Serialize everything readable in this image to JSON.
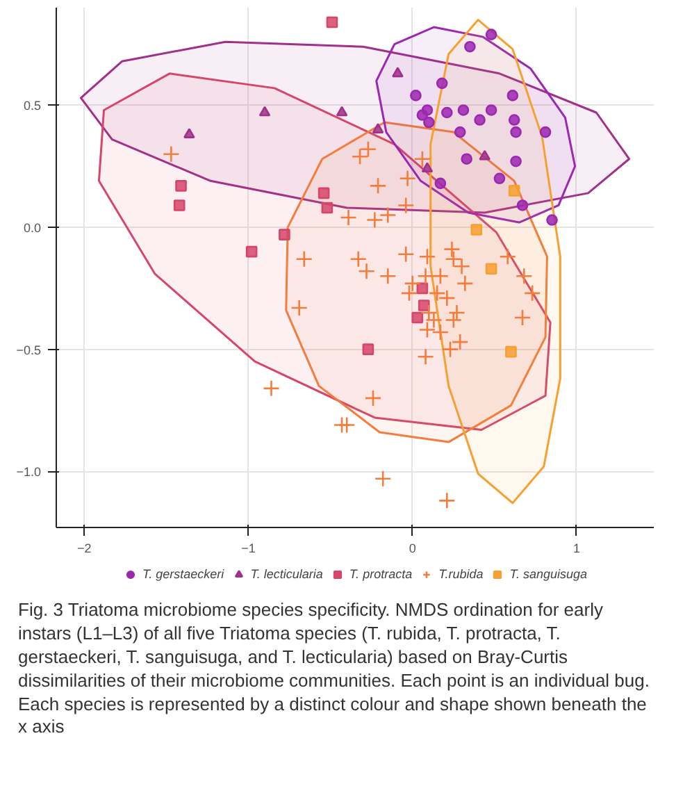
{
  "chart_data": {
    "type": "scatter",
    "xlim": [
      -2.17,
      1.47
    ],
    "ylim": [
      -1.23,
      0.9
    ],
    "xticks": [
      {
        "value": -2,
        "label": "−2"
      },
      {
        "value": -1,
        "label": "−1"
      },
      0,
      1
    ],
    "yticks": [
      {
        "value": -1,
        "label": "−1.0"
      },
      {
        "value": -0.5,
        "label": "−0.5"
      },
      {
        "value": 0,
        "label": "0.0"
      },
      0.5
    ],
    "grid": true,
    "legend": "bottom",
    "annotations": [
      "Fig. 3 Triatoma microbiome species specificity. NMDS ordination for early instars (L1–L3) of all five Triatoma species (T. rubida, T. protracta, T. gerstaeckeri, T. sanguisuga, and T. lecticularia) based on Bray-Curtis dissimilarities of their microbiome communities. Each point is an individual bug. Each species is represented by a distinct colour and shape shown beneath the x axis"
    ],
    "series": [
      {
        "type": "area",
        "color": "#a0308a",
        "x": [
          1.32,
          1.07,
          0.44,
          -0.4,
          -1.23,
          -1.83,
          -2.02,
          -1.77,
          -1.14,
          -0.3,
          0.53,
          1.12
        ],
        "values": [
          0.28,
          0.14,
          0.06,
          0.08,
          0.19,
          0.36,
          0.53,
          0.68,
          0.76,
          0.74,
          0.63,
          0.47
        ]
      },
      {
        "type": "area",
        "color": "#d6456a",
        "x": [
          0.81,
          0.42,
          -0.23,
          -0.96,
          -1.57,
          -1.91,
          -1.88,
          -1.48,
          -0.84,
          -0.11,
          0.51,
          0.84
        ],
        "values": [
          -0.69,
          -0.83,
          -0.78,
          -0.55,
          -0.19,
          0.19,
          0.48,
          0.63,
          0.57,
          0.34,
          -0.02,
          -0.39
        ]
      },
      {
        "type": "area",
        "color": "#f47c3c",
        "x": [
          0.22,
          -0.2,
          -0.57,
          -0.77,
          -0.76,
          -0.55,
          -0.17,
          0.25,
          0.62,
          0.82,
          0.81,
          0.6
        ],
        "values": [
          -0.88,
          -0.84,
          -0.65,
          -0.34,
          0.0,
          0.28,
          0.43,
          0.39,
          0.19,
          -0.12,
          -0.45,
          -0.73
        ]
      },
      {
        "type": "area",
        "color": "#9c27b0",
        "x": [
          0.89,
          0.65,
          0.34,
          0.05,
          -0.16,
          -0.22,
          -0.11,
          0.13,
          0.43,
          0.72,
          0.93,
          0.99
        ],
        "values": [
          0.09,
          0.02,
          0.06,
          0.19,
          0.39,
          0.6,
          0.75,
          0.82,
          0.78,
          0.65,
          0.45,
          0.25
        ]
      },
      {
        "type": "area",
        "color": "#f5a030",
        "x": [
          0.61,
          0.4,
          0.22,
          0.11,
          0.11,
          0.22,
          0.4,
          0.61,
          0.79,
          0.9,
          0.9,
          0.8
        ],
        "values": [
          -1.13,
          -1.01,
          -0.65,
          -0.16,
          0.34,
          0.71,
          0.85,
          0.73,
          0.37,
          -0.12,
          -0.62,
          -0.98
        ]
      },
      {
        "name": "T. gerstaeckeri",
        "color": "#9c27b0",
        "marker": "circle",
        "x": [
          0.48,
          0.35,
          0.18,
          0.02,
          0.06,
          0.09,
          0.1,
          0.21,
          0.31,
          0.41,
          0.48,
          0.61,
          0.62,
          0.63,
          0.81,
          0.29,
          0.33,
          0.63,
          0.53,
          0.17,
          0.67,
          0.85
        ],
        "values": [
          0.79,
          0.74,
          0.59,
          0.54,
          0.46,
          0.48,
          0.43,
          0.47,
          0.48,
          0.44,
          0.48,
          0.54,
          0.44,
          0.39,
          0.39,
          0.39,
          0.28,
          0.27,
          0.2,
          0.18,
          0.09,
          0.03
        ]
      },
      {
        "name": "T. lecticularia",
        "color": "#a0308a",
        "marker": "triangle",
        "x": [
          -1.36,
          -0.9,
          -0.43,
          -0.09,
          -0.21,
          0.44,
          0.09
        ],
        "values": [
          0.38,
          0.47,
          0.47,
          0.63,
          0.4,
          0.29,
          0.24
        ]
      },
      {
        "name": "T. protracta",
        "color": "#d6456a",
        "marker": "square",
        "x": [
          -0.49,
          -1.41,
          -1.42,
          -0.54,
          -0.52,
          -0.78,
          -0.98,
          0.06,
          0.07,
          0.03,
          -0.27
        ],
        "values": [
          0.84,
          0.17,
          0.09,
          0.14,
          0.08,
          -0.03,
          -0.1,
          -0.25,
          -0.32,
          -0.37,
          -0.5
        ]
      },
      {
        "name": "T.rubida",
        "color": "#f47c3c",
        "marker": "cross",
        "x": [
          -1.47,
          -0.66,
          -0.69,
          -0.86,
          -0.43,
          -0.27,
          -0.32,
          0.06,
          -0.03,
          -0.21,
          -0.04,
          -0.39,
          -0.23,
          -0.15,
          -0.33,
          -0.28,
          -0.15,
          -0.04,
          0.09,
          0.24,
          0.25,
          0.3,
          0.08,
          0.17,
          0.32,
          0.0,
          -0.02,
          0.15,
          0.21,
          0.1,
          0.27,
          0.25,
          0.13,
          0.09,
          0.17,
          0.29,
          0.23,
          0.08,
          0.58,
          0.68,
          0.73,
          0.67,
          -0.24,
          -0.4,
          -0.18,
          0.21
        ],
        "values": [
          0.3,
          -0.13,
          -0.33,
          -0.66,
          -0.81,
          0.32,
          0.29,
          0.28,
          0.2,
          0.17,
          0.09,
          0.04,
          0.03,
          0.05,
          -0.13,
          -0.18,
          -0.2,
          -0.11,
          -0.12,
          -0.09,
          -0.13,
          -0.16,
          -0.2,
          -0.2,
          -0.23,
          -0.23,
          -0.27,
          -0.27,
          -0.29,
          -0.35,
          -0.35,
          -0.38,
          -0.38,
          -0.42,
          -0.43,
          -0.47,
          -0.5,
          -0.53,
          -0.12,
          -0.2,
          -0.27,
          -0.37,
          -0.7,
          -0.81,
          -1.03,
          -1.12
        ]
      },
      {
        "name": "T. sanguisuga",
        "color": "#f5a030",
        "marker": "square",
        "x": [
          0.62,
          0.39,
          0.48,
          0.6
        ],
        "values": [
          0.15,
          -0.01,
          -0.17,
          -0.51
        ]
      }
    ]
  }
}
